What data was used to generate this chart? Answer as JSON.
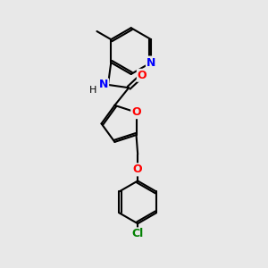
{
  "background_color": "#e8e8e8",
  "atom_colors": {
    "N": "#0000ff",
    "O": "#ff0000",
    "Cl": "#008000",
    "C": "#000000"
  },
  "bond_color": "#000000",
  "bond_width": 1.5,
  "figsize": [
    3.0,
    3.0
  ],
  "dpi": 100,
  "xlim": [
    1.5,
    8.5
  ],
  "ylim": [
    0.5,
    9.5
  ]
}
